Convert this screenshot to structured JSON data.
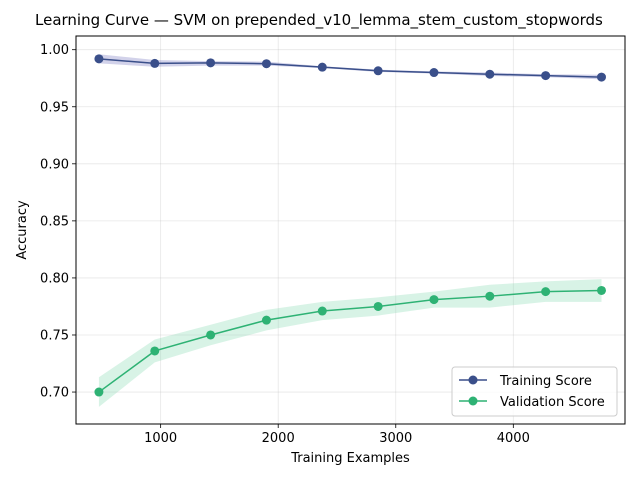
{
  "chart_data": {
    "type": "line",
    "title": "Learning Curve — SVM on prepended_v10_lemma_stem_custom_stopwords",
    "xlabel": "Training Examples",
    "ylabel": "Accuracy",
    "xlim": [
      280,
      4950
    ],
    "ylim": [
      0.672,
      1.012
    ],
    "xticks": [
      1000,
      2000,
      3000,
      4000
    ],
    "yticks": [
      0.7,
      0.75,
      0.8,
      0.85,
      0.9,
      0.95,
      1.0
    ],
    "xtick_labels": [
      "1000",
      "2000",
      "3000",
      "4000"
    ],
    "ytick_labels": [
      "0.70",
      "0.75",
      "0.80",
      "0.85",
      "0.90",
      "0.95",
      "1.00"
    ],
    "grid": true,
    "legend_position": "lower-right",
    "x": [
      475,
      950,
      1425,
      1900,
      2375,
      2850,
      3325,
      3800,
      4275,
      4750
    ],
    "series": [
      {
        "name": "Training Score",
        "color": "#3a4f8a",
        "band_color": "#6a6ab8",
        "values": [
          0.992,
          0.988,
          0.9885,
          0.9877,
          0.9847,
          0.9815,
          0.98,
          0.9785,
          0.9773,
          0.976
        ],
        "band_low": [
          0.988,
          0.985,
          0.986,
          0.986,
          0.984,
          0.9805,
          0.979,
          0.977,
          0.976,
          0.974
        ],
        "band_high": [
          0.996,
          0.991,
          0.99,
          0.9895,
          0.9855,
          0.9825,
          0.981,
          0.98,
          0.9785,
          0.978
        ]
      },
      {
        "name": "Validation Score",
        "color": "#2eb274",
        "band_color": "#7fd7ad",
        "values": [
          0.7,
          0.736,
          0.75,
          0.763,
          0.771,
          0.775,
          0.781,
          0.784,
          0.788,
          0.789
        ],
        "band_low": [
          0.687,
          0.726,
          0.741,
          0.754,
          0.763,
          0.767,
          0.774,
          0.774,
          0.779,
          0.779
        ],
        "band_high": [
          0.713,
          0.746,
          0.759,
          0.772,
          0.779,
          0.783,
          0.788,
          0.794,
          0.797,
          0.799
        ]
      }
    ]
  }
}
